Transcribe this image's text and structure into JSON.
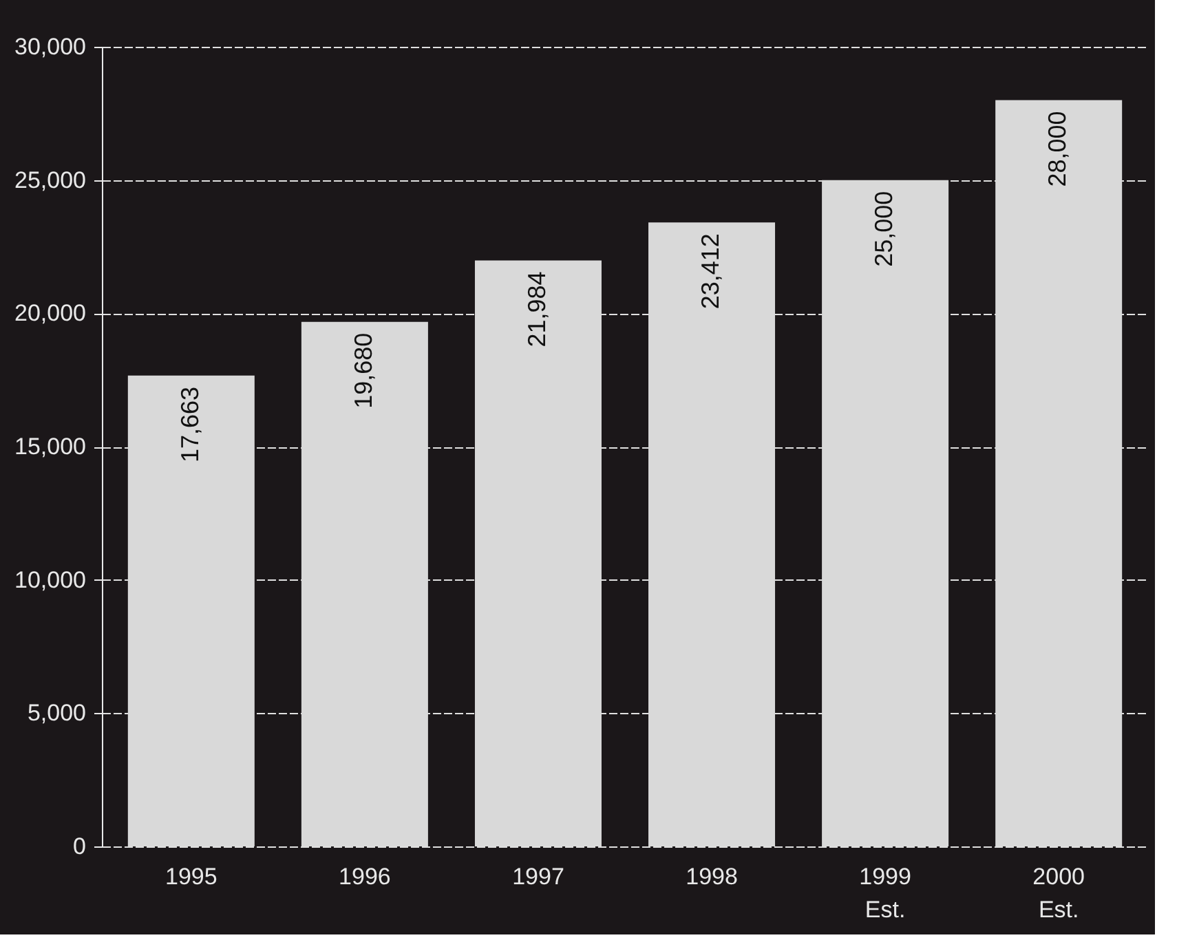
{
  "chart_data": {
    "type": "bar",
    "categories": [
      "1995",
      "1996",
      "1997",
      "1998",
      "1999 Est.",
      "2000 Est."
    ],
    "values": [
      17663,
      19680,
      21984,
      23412,
      25000,
      28000
    ],
    "value_labels": [
      "17,663",
      "19,680",
      "21,984",
      "23,412",
      "25,000",
      "28,000"
    ],
    "color": "#d9d9d9",
    "ylim": [
      0,
      30000
    ],
    "yticks": [
      0,
      {
        "value": 5000,
        "label": "5,000"
      },
      {
        "value": 10000,
        "label": "10,000"
      },
      {
        "value": 15000,
        "label": "15,000"
      },
      {
        "value": 20000,
        "label": "20,000"
      },
      {
        "value": 25000,
        "label": "25,000"
      },
      {
        "value": 30000,
        "label": "30,000"
      }
    ],
    "grid": "y"
  }
}
